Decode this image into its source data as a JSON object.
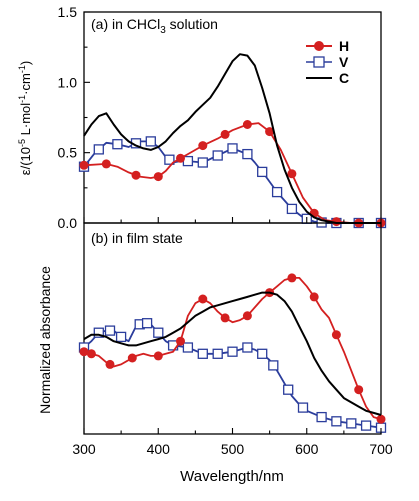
{
  "chart_data": [
    {
      "type": "line",
      "panel_label": "(a) in CHCl",
      "panel_label_sub": "3",
      "panel_label_tail": " solution",
      "ylabel": "ε/(10",
      "ylabel_sup1": "-5",
      "ylabel_mid": " L·mol",
      "ylabel_sup2": "-1",
      "ylabel_mid2": "·cm",
      "ylabel_sup3": "-1",
      "ylabel_end": ")",
      "xlim": [
        300,
        700
      ],
      "ylim": [
        0,
        1.5
      ],
      "yticks": [
        "0.0",
        "0.5",
        "1.0",
        "1.5"
      ],
      "legend_position": "top-right",
      "series": [
        {
          "name": "H",
          "color": "#d42020",
          "marker": "circle-filled",
          "x": [
            300,
            330,
            345,
            360,
            375,
            390,
            400,
            410,
            420,
            440,
            460,
            480,
            500,
            520,
            535,
            550,
            565,
            580,
            595,
            610,
            625,
            640,
            660,
            680,
            700
          ],
          "y": [
            0.41,
            0.42,
            0.4,
            0.36,
            0.33,
            0.32,
            0.33,
            0.37,
            0.43,
            0.49,
            0.55,
            0.6,
            0.66,
            0.7,
            0.71,
            0.65,
            0.52,
            0.35,
            0.18,
            0.07,
            0.02,
            0.01,
            0.0,
            0.0,
            0.0
          ],
          "marker_x": [
            300,
            330,
            370,
            400,
            430,
            460,
            490,
            520,
            550,
            580,
            610,
            640,
            670,
            700
          ]
        },
        {
          "name": "V",
          "color": "#2b3d9c",
          "marker": "square-open",
          "x": [
            300,
            315,
            330,
            345,
            360,
            375,
            390,
            400,
            410,
            420,
            430,
            440,
            460,
            480,
            500,
            520,
            530,
            545,
            560,
            580,
            595,
            610,
            625,
            640,
            660,
            680,
            700
          ],
          "y": [
            0.4,
            0.5,
            0.57,
            0.56,
            0.54,
            0.58,
            0.58,
            0.54,
            0.47,
            0.43,
            0.44,
            0.44,
            0.43,
            0.48,
            0.53,
            0.49,
            0.43,
            0.33,
            0.22,
            0.1,
            0.04,
            0.01,
            0.0,
            0.0,
            0.0,
            0.0,
            0.0
          ],
          "marker_x": [
            300,
            320,
            345,
            370,
            390,
            415,
            440,
            460,
            480,
            500,
            520,
            540,
            560,
            580,
            600,
            620,
            640,
            670,
            700
          ]
        },
        {
          "name": "C",
          "color": "#000000",
          "marker": "none",
          "x": [
            300,
            310,
            320,
            330,
            340,
            350,
            360,
            370,
            380,
            390,
            400,
            410,
            420,
            430,
            440,
            450,
            460,
            470,
            480,
            490,
            500,
            510,
            520,
            530,
            540,
            550,
            560,
            570,
            580,
            590,
            600,
            610,
            620,
            630,
            640,
            660,
            680,
            700
          ],
          "y": [
            0.62,
            0.7,
            0.76,
            0.78,
            0.7,
            0.63,
            0.58,
            0.55,
            0.53,
            0.52,
            0.54,
            0.58,
            0.64,
            0.69,
            0.73,
            0.79,
            0.84,
            0.89,
            0.97,
            1.06,
            1.15,
            1.2,
            1.19,
            1.12,
            0.96,
            0.78,
            0.55,
            0.38,
            0.25,
            0.15,
            0.08,
            0.04,
            0.02,
            0.01,
            0.0,
            0.0,
            0.0,
            0.0
          ]
        }
      ]
    },
    {
      "type": "line",
      "panel_label": "(b) in film state",
      "ylabel": "Normalized absorbance",
      "xlabel": "Wavelength/nm",
      "xlim": [
        300,
        700
      ],
      "ylim": [
        0,
        1
      ],
      "xticks": [
        "300",
        "400",
        "500",
        "600",
        "700"
      ],
      "series": [
        {
          "name": "H",
          "color": "#d42020",
          "marker": "circle-filled",
          "x": [
            300,
            310,
            320,
            330,
            340,
            350,
            360,
            370,
            380,
            390,
            400,
            410,
            420,
            430,
            440,
            450,
            460,
            470,
            480,
            490,
            500,
            510,
            520,
            530,
            540,
            550,
            560,
            570,
            580,
            590,
            600,
            610,
            620,
            630,
            640,
            650,
            660,
            670,
            680,
            690,
            700
          ],
          "y": [
            0.39,
            0.38,
            0.37,
            0.34,
            0.32,
            0.33,
            0.35,
            0.37,
            0.38,
            0.37,
            0.37,
            0.38,
            0.39,
            0.44,
            0.56,
            0.62,
            0.64,
            0.62,
            0.58,
            0.55,
            0.53,
            0.54,
            0.56,
            0.6,
            0.64,
            0.67,
            0.7,
            0.73,
            0.74,
            0.74,
            0.7,
            0.65,
            0.59,
            0.55,
            0.47,
            0.39,
            0.3,
            0.21,
            0.13,
            0.08,
            0.07
          ],
          "marker_x": [
            300,
            310,
            335,
            365,
            400,
            430,
            460,
            490,
            520,
            550,
            580,
            610,
            640,
            670,
            700
          ]
        },
        {
          "name": "V",
          "color": "#2b3d9c",
          "marker": "square-open",
          "x": [
            300,
            310,
            320,
            330,
            340,
            350,
            360,
            370,
            380,
            390,
            400,
            410,
            420,
            440,
            460,
            480,
            500,
            520,
            530,
            540,
            550,
            560,
            570,
            580,
            590,
            600,
            620,
            640,
            660,
            680,
            700
          ],
          "y": [
            0.41,
            0.44,
            0.48,
            0.49,
            0.49,
            0.46,
            0.44,
            0.51,
            0.53,
            0.52,
            0.48,
            0.44,
            0.42,
            0.41,
            0.38,
            0.38,
            0.39,
            0.41,
            0.4,
            0.38,
            0.35,
            0.3,
            0.24,
            0.18,
            0.14,
            0.11,
            0.08,
            0.06,
            0.05,
            0.04,
            0.03
          ],
          "marker_x": [
            300,
            320,
            335,
            350,
            375,
            385,
            400,
            420,
            440,
            460,
            480,
            500,
            520,
            540,
            555,
            575,
            595,
            620,
            640,
            660,
            680,
            700
          ]
        },
        {
          "name": "C",
          "color": "#000000",
          "marker": "none",
          "x": [
            300,
            310,
            320,
            330,
            340,
            350,
            360,
            370,
            380,
            390,
            400,
            410,
            420,
            430,
            440,
            450,
            460,
            470,
            480,
            490,
            500,
            510,
            520,
            530,
            540,
            550,
            560,
            570,
            580,
            590,
            600,
            610,
            620,
            630,
            640,
            650,
            660,
            670,
            680,
            690,
            700
          ],
          "y": [
            0.45,
            0.47,
            0.47,
            0.46,
            0.44,
            0.43,
            0.42,
            0.42,
            0.43,
            0.44,
            0.45,
            0.46,
            0.48,
            0.5,
            0.53,
            0.56,
            0.58,
            0.6,
            0.61,
            0.62,
            0.63,
            0.64,
            0.65,
            0.66,
            0.67,
            0.67,
            0.66,
            0.63,
            0.58,
            0.51,
            0.44,
            0.36,
            0.3,
            0.25,
            0.21,
            0.17,
            0.15,
            0.13,
            0.11,
            0.1,
            0.09
          ]
        }
      ]
    }
  ]
}
